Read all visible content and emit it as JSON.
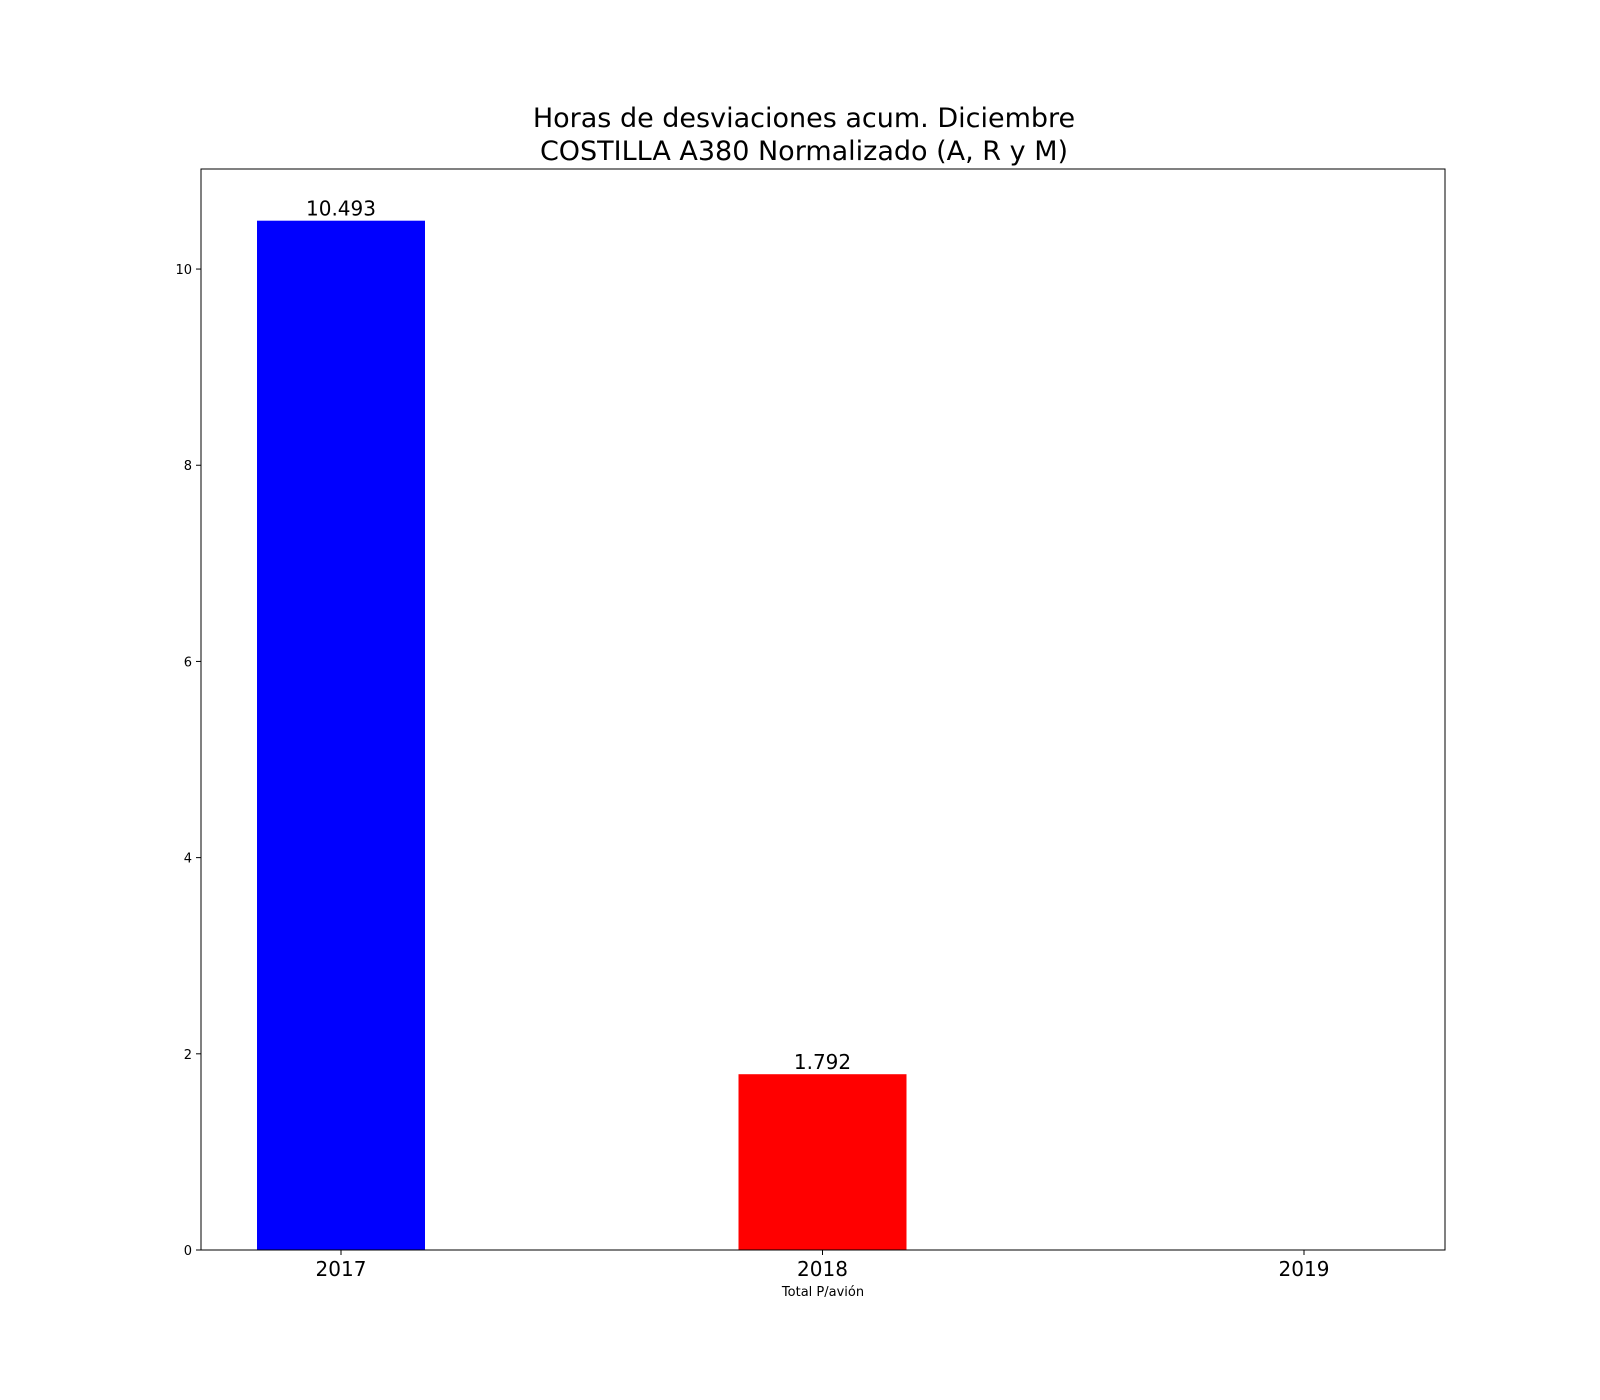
{
  "chart_data": {
    "type": "bar",
    "title": [
      "Horas de desviaciones acum. Diciembre",
      "COSTILLA A380 Normalizado (A, R y M)"
    ],
    "categories": [
      "2017",
      "2018",
      "2019"
    ],
    "values": [
      10.493,
      1.792,
      0
    ],
    "data_labels": [
      "10.493",
      "1.792",
      ""
    ],
    "colors": [
      "#0000ff",
      "#ff0000",
      "#00a000"
    ],
    "xlabel": "Total P/avión",
    "ylabel": "",
    "ylim": [
      0,
      11.02
    ],
    "yticks": [
      0,
      2,
      4,
      6,
      8,
      10
    ],
    "grid": false,
    "legend": "none"
  }
}
